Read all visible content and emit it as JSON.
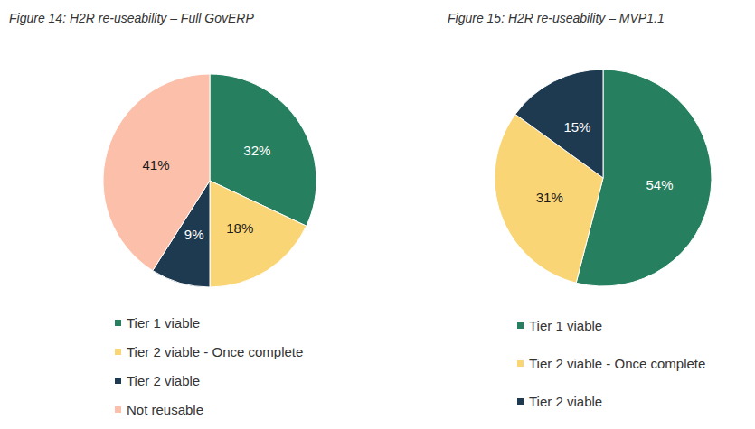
{
  "chart_data": [
    {
      "type": "pie",
      "title": "Figure 14: H2R re-useability – Full GovERP",
      "categories": [
        "Tier 1 viable",
        "Tier 2 viable - Once complete",
        "Tier 2 viable",
        "Not reusable"
      ],
      "values": [
        32,
        18,
        9,
        41
      ],
      "value_labels": [
        "32%",
        "18%",
        "9%",
        "41%"
      ],
      "colors": [
        "#26805f",
        "#f9d575",
        "#1e3a50",
        "#fcbfaa"
      ],
      "data_labels": true,
      "legend": "bottom"
    },
    {
      "type": "pie",
      "title": "Figure 15: H2R re-useability – MVP1.1",
      "categories": [
        "Tier 1 viable",
        "Tier 2 viable - Once complete",
        "Tier 2 viable"
      ],
      "values": [
        54,
        31,
        15
      ],
      "value_labels": [
        "54%",
        "31%",
        "15%"
      ],
      "colors": [
        "#26805f",
        "#f9d575",
        "#1e3a50"
      ],
      "data_labels": true,
      "legend": "bottom"
    }
  ]
}
